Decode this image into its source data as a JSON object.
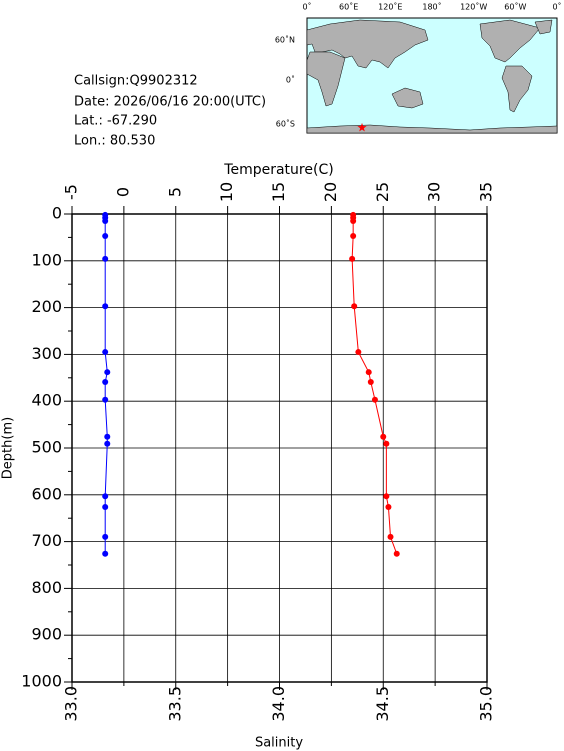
{
  "info": [
    "Callsign:Q9902312",
    "Date:  2026/06/16 20:00(UTC)",
    "Lat.:  -67.290",
    "Lon.:   80.530"
  ],
  "map": {
    "lon_labels": [
      "0˚",
      "60˚E",
      "120˚E",
      "180˚",
      "120˚W",
      "60˚W",
      "0˚"
    ],
    "lat_labels": [
      "60˚N",
      "0˚",
      "60˚S"
    ]
  },
  "chart_data": {
    "type": "line",
    "xlabel": "Salinity",
    "x2label": "Temperature(C)",
    "ylabel": "Depth(m)",
    "depth": [
      2,
      8,
      15,
      47,
      96,
      197,
      295,
      338,
      359,
      397,
      476,
      491,
      603,
      626,
      690,
      726
    ],
    "series": [
      {
        "axis": "x2",
        "color": "#ff0000",
        "values": [
          22.1,
          22.1,
          22.1,
          22.1,
          22.0,
          22.2,
          22.6,
          23.6,
          23.8,
          24.2,
          25.0,
          25.3,
          25.3,
          25.5,
          25.7,
          26.3
        ]
      },
      {
        "axis": "x",
        "color": "#0000ff",
        "values": [
          33.16,
          33.16,
          33.16,
          33.16,
          33.16,
          33.16,
          33.16,
          33.17,
          33.16,
          33.16,
          33.17,
          33.17,
          33.16,
          33.16,
          33.16,
          33.16
        ]
      }
    ],
    "xlim": [
      33.0,
      35.0
    ],
    "xticks": [
      {
        "value": 33.0,
        "label": "33.0"
      },
      33.5,
      {
        "value": 34.0,
        "label": "34.0"
      },
      34.5,
      {
        "value": 35.0,
        "label": "35.0"
      }
    ],
    "xminorticks": [
      33.25,
      33.75,
      34.25,
      34.75
    ],
    "x2lim": [
      -5,
      35
    ],
    "x2ticks": [
      -5,
      0,
      5,
      10,
      15,
      20,
      25,
      30,
      35
    ],
    "ylim": [
      0,
      1000
    ],
    "y_inverted": true,
    "yticks": [
      0,
      100,
      200,
      300,
      400,
      500,
      600,
      700,
      800,
      900,
      1000
    ],
    "yminorticks": [
      50,
      150,
      250,
      350,
      450,
      550,
      650,
      750,
      850,
      950
    ],
    "grid": true
  }
}
